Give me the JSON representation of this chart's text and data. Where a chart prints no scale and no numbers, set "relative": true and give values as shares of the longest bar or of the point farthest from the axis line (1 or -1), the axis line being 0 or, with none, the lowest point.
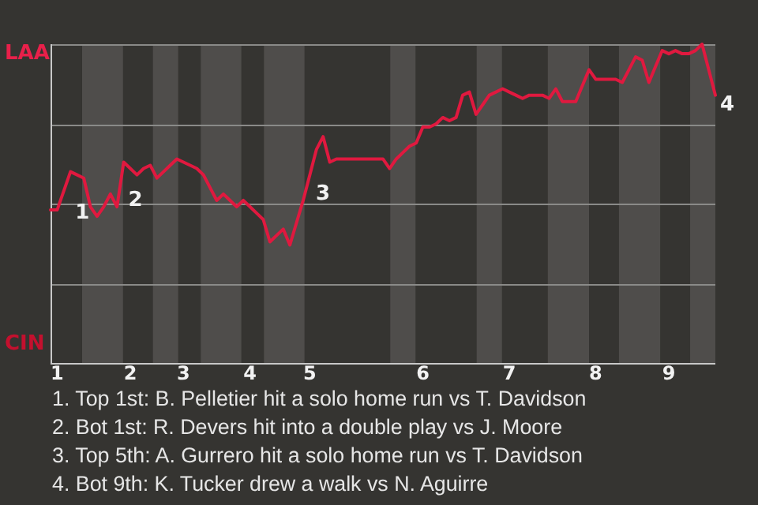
{
  "chart_data": {
    "type": "line",
    "relative": true,
    "categories": [
      null,
      "1",
      null,
      null,
      null,
      null,
      null,
      null,
      null,
      null,
      null,
      null,
      "2",
      null,
      null,
      null,
      null,
      null,
      null,
      null,
      "3",
      null,
      null,
      null,
      null,
      null,
      null,
      null,
      null,
      null,
      "4",
      null,
      null,
      null,
      null,
      null,
      null,
      null,
      null,
      "5",
      null,
      null,
      null,
      null,
      null,
      null,
      null,
      null,
      null,
      null,
      null,
      null,
      null,
      null,
      null,
      null,
      "6",
      null,
      null,
      null,
      null,
      null,
      null,
      null,
      null,
      null,
      null,
      null,
      null,
      "7",
      null,
      null,
      null,
      null,
      null,
      null,
      null,
      null,
      null,
      null,
      null,
      null,
      "8",
      null,
      null,
      null,
      null,
      null,
      null,
      null,
      null,
      null,
      null,
      "9",
      null,
      null,
      null,
      null,
      null,
      null,
      null
    ],
    "series": [
      {
        "color": "#e0193f",
        "values": [
          0.48,
          0.48,
          0.54,
          0.6,
          0.59,
          0.58,
          0.49,
          0.46,
          0.49,
          0.53,
          0.49,
          0.63,
          0.61,
          0.59,
          0.61,
          0.62,
          0.58,
          0.6,
          0.62,
          0.64,
          0.63,
          0.62,
          0.61,
          0.59,
          0.55,
          0.51,
          0.53,
          0.51,
          0.49,
          0.51,
          0.49,
          0.47,
          0.45,
          0.38,
          0.4,
          0.42,
          0.37,
          0.44,
          0.51,
          0.59,
          0.67,
          0.71,
          0.63,
          0.64,
          0.64,
          0.64,
          0.64,
          0.64,
          0.64,
          0.64,
          0.64,
          0.61,
          0.64,
          0.66,
          0.68,
          0.69,
          0.74,
          0.74,
          0.75,
          0.77,
          0.76,
          0.77,
          0.84,
          0.85,
          0.78,
          0.81,
          0.84,
          0.85,
          0.86,
          0.85,
          0.84,
          0.83,
          0.84,
          0.84,
          0.84,
          0.83,
          0.86,
          0.82,
          0.82,
          0.82,
          0.87,
          0.92,
          0.89,
          0.89,
          0.89,
          0.89,
          0.88,
          0.92,
          0.96,
          0.95,
          0.88,
          0.93,
          0.98,
          0.97,
          0.98,
          0.97,
          0.97,
          0.98,
          1,
          0.92,
          0.84
        ]
      }
    ],
    "grid": "y",
    "marker": "none",
    "line_style": "solid",
    "annotations": [
      "LAA",
      "CIN",
      "1",
      "2",
      "3",
      "4",
      "1. Top 1st: B. Pelletier hit a solo home run vs T. Davidson",
      "2. Bot 1st: R. Devers hit into a double play vs J. Moore",
      "3. Top 5th: A. Gurrero hit a solo home run vs T. Davidson",
      "4. Bot 9th: K. Tucker drew a walk vs N. Aguirre"
    ]
  }
}
